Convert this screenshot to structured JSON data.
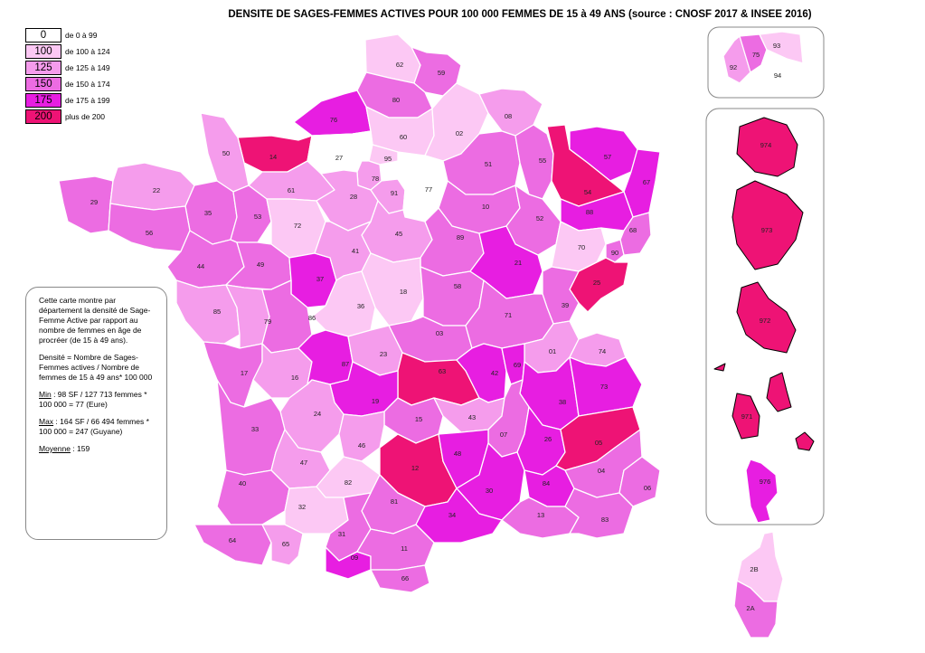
{
  "title": "DENSITE DE SAGES-FEMMES ACTIVES POUR 100 000 FEMMES DE 15 à 49 ANS (source : CNOSF 2017 & INSEE 2016)",
  "legend": [
    {
      "value": "0",
      "label": "de 0 à 99",
      "color": "#ffffff"
    },
    {
      "value": "100",
      "label": "de 100 à 124",
      "color": "#fcc8f4"
    },
    {
      "value": "125",
      "label": "de 125 à 149",
      "color": "#f59cec"
    },
    {
      "value": "150",
      "label": "de 150 à 174",
      "color": "#ec6ce2"
    },
    {
      "value": "175",
      "label": "de 175 à 199",
      "color": "#e71ee1"
    },
    {
      "value": "200",
      "label": "plus de 200",
      "color": "#ee1375"
    }
  ],
  "info": {
    "description": "Cette carte montre par département la densité de Sage-Femme Active par rapport au nombre de femmes en âge de procréer (de 15 à 49 ans).",
    "formula": "Densité  = Nombre de Sages-Femmes actives / Nombre de femmes de 15 à 49 ans* 100 000",
    "min_label": "Min",
    "min_text": " : 98 SF / 127 713 femmes * 100 000 = 77 (Eure)",
    "max_label": "Max",
    "max_text": " : 164 SF / 66 494 femmes * 100 000 = 247 (Guyane)",
    "mean_label": "Moyenne",
    "mean_text": " : 159"
  },
  "departments": [
    {
      "code": "62",
      "class": "100"
    },
    {
      "code": "59",
      "class": "150"
    },
    {
      "code": "80",
      "class": "150"
    },
    {
      "code": "76",
      "class": "175"
    },
    {
      "code": "60",
      "class": "100"
    },
    {
      "code": "02",
      "class": "100"
    },
    {
      "code": "08",
      "class": "125"
    },
    {
      "code": "14",
      "class": "200"
    },
    {
      "code": "27",
      "class": "0"
    },
    {
      "code": "50",
      "class": "125"
    },
    {
      "code": "95",
      "class": "100"
    },
    {
      "code": "78",
      "class": "125"
    },
    {
      "code": "91",
      "class": "125"
    },
    {
      "code": "77",
      "class": "0"
    },
    {
      "code": "51",
      "class": "150"
    },
    {
      "code": "55",
      "class": "150"
    },
    {
      "code": "54",
      "class": "200"
    },
    {
      "code": "57",
      "class": "175"
    },
    {
      "code": "67",
      "class": "175"
    },
    {
      "code": "88",
      "class": "175"
    },
    {
      "code": "68",
      "class": "150"
    },
    {
      "code": "29",
      "class": "150"
    },
    {
      "code": "22",
      "class": "125"
    },
    {
      "code": "35",
      "class": "150"
    },
    {
      "code": "56",
      "class": "150"
    },
    {
      "code": "61",
      "class": "125"
    },
    {
      "code": "53",
      "class": "150"
    },
    {
      "code": "72",
      "class": "100"
    },
    {
      "code": "28",
      "class": "125"
    },
    {
      "code": "45",
      "class": "125"
    },
    {
      "code": "10",
      "class": "150"
    },
    {
      "code": "52",
      "class": "150"
    },
    {
      "code": "89",
      "class": "150"
    },
    {
      "code": "44",
      "class": "150"
    },
    {
      "code": "49",
      "class": "150"
    },
    {
      "code": "37",
      "class": "175"
    },
    {
      "code": "41",
      "class": "125"
    },
    {
      "code": "18",
      "class": "100"
    },
    {
      "code": "58",
      "class": "150"
    },
    {
      "code": "21",
      "class": "175"
    },
    {
      "code": "70",
      "class": "100"
    },
    {
      "code": "25",
      "class": "200"
    },
    {
      "code": "90",
      "class": "150"
    },
    {
      "code": "39",
      "class": "150"
    },
    {
      "code": "85",
      "class": "125"
    },
    {
      "code": "79",
      "class": "125"
    },
    {
      "code": "86",
      "class": "150"
    },
    {
      "code": "36",
      "class": "100"
    },
    {
      "code": "03",
      "class": "150"
    },
    {
      "code": "71",
      "class": "150"
    },
    {
      "code": "01",
      "class": "125"
    },
    {
      "code": "74",
      "class": "125"
    },
    {
      "code": "17",
      "class": "150"
    },
    {
      "code": "16",
      "class": "125"
    },
    {
      "code": "87",
      "class": "175"
    },
    {
      "code": "23",
      "class": "125"
    },
    {
      "code": "63",
      "class": "200"
    },
    {
      "code": "42",
      "class": "175"
    },
    {
      "code": "69",
      "class": "175"
    },
    {
      "code": "38",
      "class": "175"
    },
    {
      "code": "73",
      "class": "175"
    },
    {
      "code": "19",
      "class": "175"
    },
    {
      "code": "15",
      "class": "150"
    },
    {
      "code": "43",
      "class": "125"
    },
    {
      "code": "07",
      "class": "150"
    },
    {
      "code": "26",
      "class": "175"
    },
    {
      "code": "05",
      "class": "200"
    },
    {
      "code": "24",
      "class": "125"
    },
    {
      "code": "33",
      "class": "150"
    },
    {
      "code": "46",
      "class": "125"
    },
    {
      "code": "47",
      "class": "125"
    },
    {
      "code": "12",
      "class": "200"
    },
    {
      "code": "48",
      "class": "175"
    },
    {
      "code": "30",
      "class": "175"
    },
    {
      "code": "84",
      "class": "175"
    },
    {
      "code": "04",
      "class": "150"
    },
    {
      "code": "06",
      "class": "150"
    },
    {
      "code": "40",
      "class": "150"
    },
    {
      "code": "82",
      "class": "100"
    },
    {
      "code": "81",
      "class": "150"
    },
    {
      "code": "34",
      "class": "175"
    },
    {
      "code": "13",
      "class": "150"
    },
    {
      "code": "83",
      "class": "150"
    },
    {
      "code": "32",
      "class": "100"
    },
    {
      "code": "31",
      "class": "150"
    },
    {
      "code": "64",
      "class": "150"
    },
    {
      "code": "65",
      "class": "125"
    },
    {
      "code": "09",
      "class": "175"
    },
    {
      "code": "11",
      "class": "150"
    },
    {
      "code": "66",
      "class": "150"
    },
    {
      "code": "75",
      "class": "150"
    },
    {
      "code": "92",
      "class": "125"
    },
    {
      "code": "93",
      "class": "100"
    },
    {
      "code": "94",
      "class": "0"
    },
    {
      "code": "974",
      "class": "200"
    },
    {
      "code": "973",
      "class": "200"
    },
    {
      "code": "972",
      "class": "200"
    },
    {
      "code": "971",
      "class": "200"
    },
    {
      "code": "976",
      "class": "175"
    },
    {
      "code": "2B",
      "class": "100"
    },
    {
      "code": "2A",
      "class": "150"
    }
  ]
}
